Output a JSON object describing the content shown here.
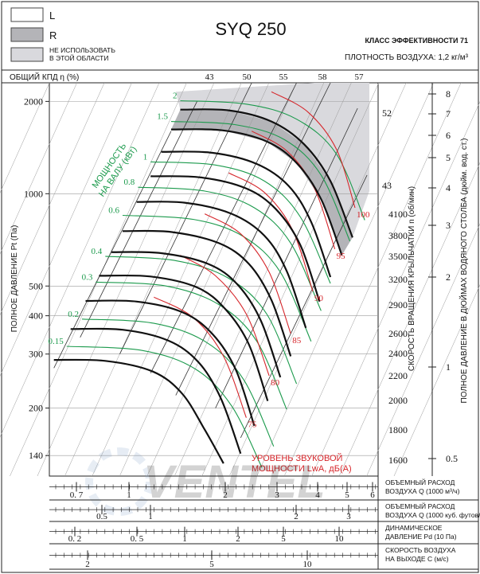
{
  "title": "SYQ 250",
  "legend": {
    "l_label": "L",
    "r_label": "R",
    "nu_line1": "НЕ ИСПОЛЬЗОВАТЬ",
    "nu_line2": "В ЭТОЙ ОБЛАСТИ"
  },
  "header": {
    "efficiency_class": "КЛАСС ЭФФЕКТИВНОСТИ 71",
    "air_density": "ПЛОТНОСТЬ ВОЗДУХА: 1,2 кг/м³"
  },
  "efficiency_scale": {
    "label": "ОБЩИЙ КПД η (%)",
    "values": [
      "43",
      "50",
      "55",
      "58",
      "57"
    ]
  },
  "efficiency_right": [
    "52",
    "43"
  ],
  "left_axis": {
    "label": "ПОЛНОЕ ДАВЛЕНИЕ Pt (Па)",
    "ticks": [
      "2000",
      "1000",
      "500",
      "400",
      "300",
      "200",
      "140"
    ]
  },
  "speed_axis": {
    "label": "СКОРОСТЬ ВРАЩЕНИЯ КРЫЛЬЧАТКИ n (об/мин)",
    "ticks": [
      "4100",
      "3800",
      "3500",
      "3200",
      "2900",
      "2600",
      "2400",
      "2200",
      "2000",
      "1800",
      "1600"
    ]
  },
  "inch_axis": {
    "label": "ПОЛНОЕ ДАВЛЕНИЕ В ДЮЙМАХ ВОДЯНОГО СТОЛБА (дюйм. вод. ст.)",
    "ticks": [
      "8",
      "7",
      "6",
      "5",
      "4",
      "3",
      "2",
      "1",
      "0.5"
    ]
  },
  "power_label": {
    "line1": "МОЩНОСТЬ",
    "line2": "НА ВАЛУ (кВт)"
  },
  "sound_label": {
    "line1": "УРОВЕНЬ ЗВУКОВОЙ",
    "line2": "МОЩНОСТИ LwA, дБ(А)"
  },
  "bottom_scales": [
    {
      "line1": "ОБЪЕМНЫЙ РАСХОД",
      "line2": "ВОЗДУХА Q (1000 м³/ч)",
      "ticks": [
        "0. 7",
        "1",
        "2",
        "3",
        "4",
        "5",
        "6"
      ]
    },
    {
      "line1": "ОБЪЕМНЫЙ РАСХОД",
      "line2": "ВОЗДУХА Q (1000 куб. футов/мин)",
      "ticks": [
        "0.5",
        "1",
        "2",
        "3"
      ]
    },
    {
      "line1": "ДИНАМИЧЕСКОЕ",
      "line2": "ДАВЛЕНИЕ Pd (10 Па)",
      "ticks": [
        "0. 2",
        "0. 5",
        "1",
        "2",
        "5",
        "10"
      ]
    },
    {
      "line1": "СКОРОСТЬ ВОЗДУХА",
      "line2": "НА ВЫХОДЕ C (м/с)",
      "ticks": [
        "2",
        "5",
        "10"
      ]
    }
  ],
  "watermark": "VENTEL",
  "colors": {
    "curve": "#111111",
    "power": "#1b9a4c",
    "sound": "#d6262b",
    "region_r": "#b4b4b8",
    "region_nu": "#d9d9dd"
  },
  "chart_data": {
    "type": "line",
    "x_axis": {
      "quantity": "Q (1000 м³/ч)",
      "range": [
        0.6,
        6.5
      ],
      "scale": "log"
    },
    "y_axis": {
      "quantity": "Pt (Па)",
      "range": [
        120,
        2300
      ],
      "scale": "log"
    },
    "grid": "on",
    "fan_curves": [
      {
        "speed": "4100",
        "points": [
          [
            1.55,
            1880
          ],
          [
            2.2,
            1870
          ],
          [
            3.0,
            1720
          ],
          [
            3.8,
            1450
          ],
          [
            4.6,
            1100
          ],
          [
            5.4,
            720
          ]
        ]
      },
      {
        "speed": "3800",
        "points": [
          [
            1.45,
            1620
          ],
          [
            2.1,
            1610
          ],
          [
            2.9,
            1480
          ],
          [
            3.6,
            1260
          ],
          [
            4.3,
            960
          ],
          [
            5.0,
            630
          ]
        ]
      },
      {
        "speed": "3500",
        "points": [
          [
            1.35,
            1370
          ],
          [
            1.95,
            1360
          ],
          [
            2.7,
            1250
          ],
          [
            3.4,
            1060
          ],
          [
            4.0,
            810
          ],
          [
            4.6,
            535
          ]
        ]
      },
      {
        "speed": "3200",
        "points": [
          [
            1.25,
            1140
          ],
          [
            1.8,
            1130
          ],
          [
            2.5,
            1040
          ],
          [
            3.1,
            890
          ],
          [
            3.7,
            680
          ],
          [
            4.25,
            445
          ]
        ]
      },
      {
        "speed": "2900",
        "points": [
          [
            1.13,
            940
          ],
          [
            1.6,
            935
          ],
          [
            2.25,
            860
          ],
          [
            2.85,
            730
          ],
          [
            3.35,
            560
          ],
          [
            3.85,
            365
          ]
        ]
      },
      {
        "speed": "2600",
        "points": [
          [
            1.02,
            755
          ],
          [
            1.45,
            750
          ],
          [
            2.05,
            690
          ],
          [
            2.55,
            590
          ],
          [
            3.0,
            450
          ],
          [
            3.45,
            295
          ]
        ]
      },
      {
        "speed": "2400",
        "points": [
          [
            0.94,
            645
          ],
          [
            1.35,
            640
          ],
          [
            1.9,
            590
          ],
          [
            2.35,
            505
          ],
          [
            2.78,
            385
          ],
          [
            3.2,
            252
          ]
        ]
      },
      {
        "speed": "2200",
        "points": [
          [
            0.86,
            540
          ],
          [
            1.25,
            537
          ],
          [
            1.75,
            495
          ],
          [
            2.15,
            420
          ],
          [
            2.55,
            322
          ],
          [
            2.92,
            211
          ]
        ]
      },
      {
        "speed": "2000",
        "points": [
          [
            0.78,
            447
          ],
          [
            1.13,
            445
          ],
          [
            1.58,
            410
          ],
          [
            1.96,
            348
          ],
          [
            2.32,
            266
          ],
          [
            2.65,
            175
          ]
        ]
      },
      {
        "speed": "1800",
        "points": [
          [
            0.7,
            362
          ],
          [
            1.02,
            360
          ],
          [
            1.42,
            332
          ],
          [
            1.77,
            282
          ],
          [
            2.08,
            215
          ],
          [
            2.4,
            142
          ]
        ]
      },
      {
        "speed": "1600",
        "points": [
          [
            0.62,
            287
          ],
          [
            0.9,
            285
          ],
          [
            1.27,
            263
          ],
          [
            1.57,
            223
          ],
          [
            1.85,
            170
          ],
          [
            2.12,
            132
          ]
        ]
      }
    ],
    "power_lines": [
      {
        "kw": "2",
        "points": [
          [
            1.55,
            2010
          ],
          [
            2.5,
            1960
          ],
          [
            3.6,
            1750
          ],
          [
            4.8,
            1350
          ],
          [
            5.9,
            820
          ]
        ]
      },
      {
        "kw": "1.5",
        "points": [
          [
            1.45,
            1720
          ],
          [
            2.3,
            1680
          ],
          [
            3.3,
            1500
          ],
          [
            4.3,
            1150
          ],
          [
            5.3,
            700
          ]
        ]
      },
      {
        "kw": "1",
        "points": [
          [
            1.25,
            1270
          ],
          [
            2.0,
            1240
          ],
          [
            2.85,
            1100
          ],
          [
            3.7,
            840
          ],
          [
            4.6,
            510
          ]
        ]
      },
      {
        "kw": "0.8",
        "points": [
          [
            1.14,
            1050
          ],
          [
            1.85,
            1020
          ],
          [
            2.65,
            900
          ],
          [
            3.45,
            690
          ],
          [
            4.3,
            415
          ]
        ]
      },
      {
        "kw": "0.6",
        "points": [
          [
            1.02,
            850
          ],
          [
            1.7,
            825
          ],
          [
            2.45,
            725
          ],
          [
            3.2,
            555
          ],
          [
            4.0,
            330
          ]
        ]
      },
      {
        "kw": "0.4",
        "points": [
          [
            0.9,
            625
          ],
          [
            1.5,
            605
          ],
          [
            2.2,
            530
          ],
          [
            2.9,
            405
          ],
          [
            3.6,
            240
          ]
        ]
      },
      {
        "kw": "0.3",
        "points": [
          [
            0.84,
            515
          ],
          [
            1.4,
            500
          ],
          [
            2.05,
            435
          ],
          [
            2.7,
            330
          ],
          [
            3.35,
            198
          ]
        ]
      },
      {
        "kw": "0.2",
        "points": [
          [
            0.76,
            390
          ],
          [
            1.28,
            378
          ],
          [
            1.87,
            328
          ],
          [
            2.45,
            248
          ],
          [
            3.05,
            150
          ]
        ]
      },
      {
        "kw": "0.15",
        "points": [
          [
            0.68,
            318
          ],
          [
            1.18,
            308
          ],
          [
            1.73,
            268
          ],
          [
            2.25,
            203
          ],
          [
            2.8,
            128
          ]
        ]
      }
    ],
    "sound_lines": [
      {
        "dba": "100",
        "points": [
          [
            3.0,
            2150
          ],
          [
            3.9,
            1850
          ],
          [
            4.8,
            1400
          ],
          [
            5.5,
            900
          ]
        ]
      },
      {
        "dba": "95",
        "points": [
          [
            2.6,
            1600
          ],
          [
            3.35,
            1380
          ],
          [
            4.1,
            1040
          ],
          [
            4.75,
            660
          ]
        ]
      },
      {
        "dba": "90",
        "points": [
          [
            2.2,
            1170
          ],
          [
            2.85,
            1010
          ],
          [
            3.5,
            760
          ],
          [
            4.05,
            480
          ]
        ]
      },
      {
        "dba": "85",
        "points": [
          [
            1.85,
            860
          ],
          [
            2.4,
            740
          ],
          [
            2.95,
            555
          ],
          [
            3.45,
            350
          ]
        ]
      },
      {
        "dba": "80",
        "points": [
          [
            1.55,
            630
          ],
          [
            2.0,
            540
          ],
          [
            2.5,
            405
          ],
          [
            2.95,
            255
          ]
        ]
      },
      {
        "dba": "75",
        "points": [
          [
            1.28,
            460
          ],
          [
            1.7,
            395
          ],
          [
            2.12,
            295
          ],
          [
            2.5,
            186
          ]
        ]
      }
    ],
    "efficiency_lines": [
      {
        "label": "43",
        "points": [
          [
            1.45,
            1600
          ],
          [
            0.62,
            270
          ]
        ]
      },
      {
        "label": "50",
        "points": [
          [
            1.75,
            2000
          ],
          [
            0.75,
            340
          ]
        ]
      },
      {
        "label": "55",
        "points": [
          [
            2.6,
            2300
          ],
          [
            1.0,
            300
          ]
        ]
      },
      {
        "label": "58",
        "points": [
          [
            3.6,
            2300
          ],
          [
            1.25,
            260
          ]
        ]
      },
      {
        "label": "57",
        "points": [
          [
            4.6,
            2300
          ],
          [
            1.5,
            220
          ]
        ]
      },
      {
        "label": "52",
        "points": [
          [
            5.6,
            1900
          ],
          [
            2.0,
            200
          ]
        ]
      },
      {
        "label": "43",
        "points": [
          [
            6.0,
            1150
          ],
          [
            2.4,
            160
          ]
        ]
      }
    ]
  }
}
